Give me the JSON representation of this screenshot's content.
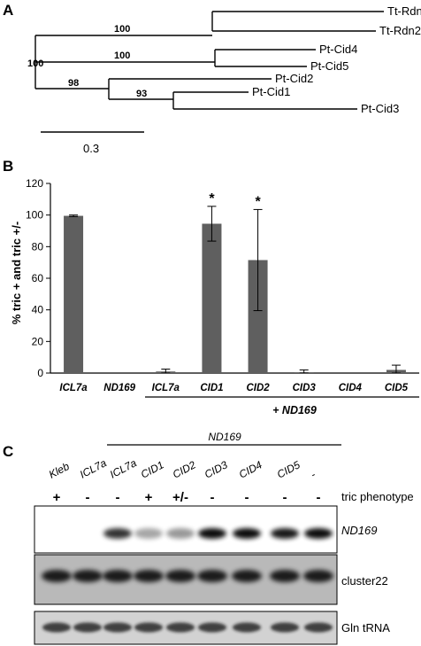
{
  "panel_a": {
    "label": "A",
    "taxa": [
      "Tt-Rdn1",
      "Tt-Rdn2",
      "Pt-Cid4",
      "Pt-Cid5",
      "Pt-Cid2",
      "Pt-Cid1",
      "Pt-Cid3"
    ],
    "bootstrap": [
      "100",
      "100",
      "100",
      "98",
      "93"
    ],
    "scale_label": "0.3"
  },
  "panel_b": {
    "label": "B",
    "group_label": "+ ND169"
  },
  "chart_data": {
    "type": "bar",
    "ylabel": "% tric + and tric +/-",
    "xlabel": "",
    "ylim": [
      0,
      120
    ],
    "yticks": [
      0,
      20,
      40,
      60,
      80,
      100,
      120
    ],
    "categories": [
      "ICL7a",
      "ND169",
      "ICL7a",
      "CID1",
      "CID2",
      "CID3",
      "CID4",
      "CID5"
    ],
    "values": [
      99.5,
      0,
      1,
      94.5,
      71.5,
      0.5,
      0,
      2
    ],
    "error": [
      0.5,
      0,
      1.5,
      11,
      32,
      1.5,
      0,
      3
    ],
    "significance": [
      "",
      "",
      "",
      "*",
      "*",
      "",
      "",
      ""
    ],
    "bar_color": "#5f5f5f",
    "grid": false
  },
  "panel_c": {
    "label": "C",
    "header": "ND169",
    "lanes": [
      "Kleb",
      "ICL7a",
      "ICL7a",
      "CID1",
      "CID2",
      "CID3",
      "CID4",
      "CID5",
      "-"
    ],
    "phenotypes": [
      "+",
      "-",
      "-",
      "+",
      "+/-",
      "-",
      "-",
      "-",
      "-"
    ],
    "phenotype_label": "tric phenotype",
    "blot_rows": [
      "ND169",
      "cluster22",
      "Gln tRNA"
    ]
  }
}
